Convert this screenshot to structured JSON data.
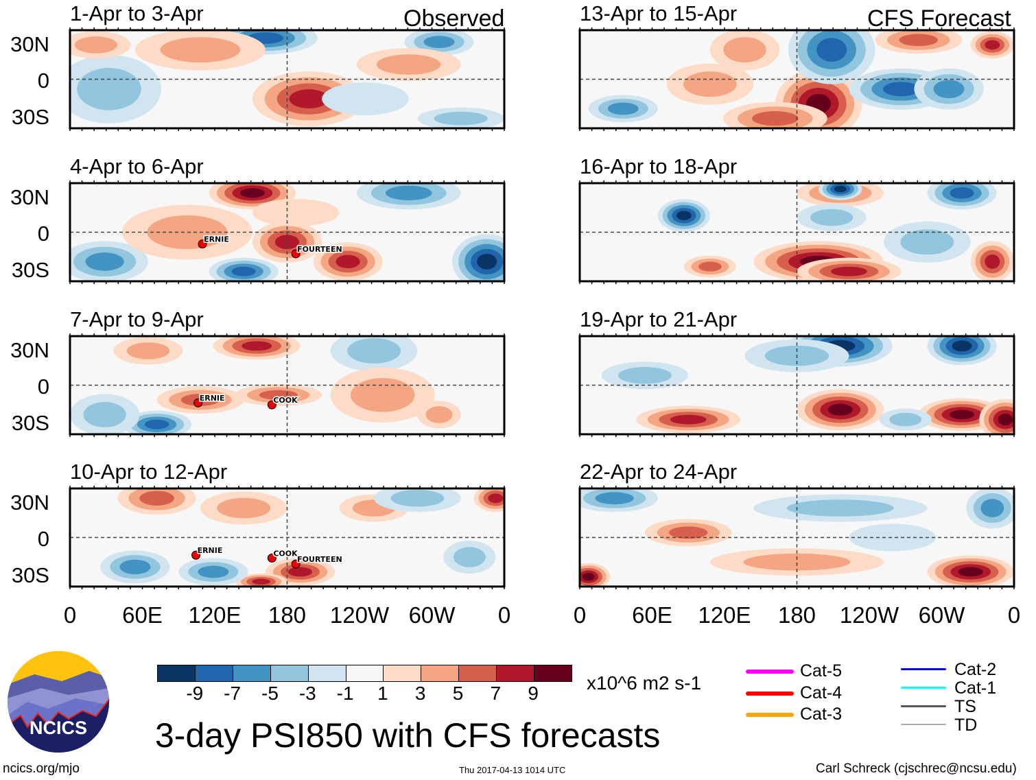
{
  "header": {
    "observed_label": "Observed",
    "forecast_label": "CFS Forecast"
  },
  "panels": [
    {
      "title": "1-Apr to 3-Apr",
      "group": "observed",
      "storms": []
    },
    {
      "title": "4-Apr to 6-Apr",
      "group": "observed",
      "storms": [
        {
          "name": "ERNIE",
          "id": "E"
        },
        {
          "name": "FOURTEEN",
          "id": "14"
        }
      ]
    },
    {
      "title": "7-Apr to 9-Apr",
      "group": "observed",
      "storms": [
        {
          "name": "ERNIE",
          "id": "E"
        },
        {
          "name": "COOK",
          "id": "C"
        }
      ]
    },
    {
      "title": "10-Apr to 12-Apr",
      "group": "observed",
      "storms": [
        {
          "name": "ERNIE",
          "id": "E"
        },
        {
          "name": "COOK",
          "id": "C"
        },
        {
          "name": "FOURTEEN",
          "id": "14"
        }
      ]
    },
    {
      "title": "13-Apr to 15-Apr",
      "group": "forecast",
      "storms": []
    },
    {
      "title": "16-Apr to 18-Apr",
      "group": "forecast",
      "storms": []
    },
    {
      "title": "19-Apr to 21-Apr",
      "group": "forecast",
      "storms": []
    },
    {
      "title": "22-Apr to 24-Apr",
      "group": "forecast",
      "storms": []
    }
  ],
  "axes": {
    "lat_labels": [
      "30N",
      "0",
      "30S"
    ],
    "lon_labels": [
      "0",
      "60E",
      "120E",
      "180",
      "120W",
      "60W",
      "0"
    ]
  },
  "colorbar": {
    "colors": [
      "#0a3463",
      "#2166ac",
      "#4393c3",
      "#92c5de",
      "#d1e5f0",
      "#f7f7f7",
      "#fddbc7",
      "#f4a582",
      "#d6604d",
      "#b2182b",
      "#67001f"
    ],
    "ticks": [
      "-9",
      "-7",
      "-5",
      "-3",
      "-1",
      "1",
      "3",
      "5",
      "7",
      "9"
    ],
    "units": "x10^6 m2 s-1"
  },
  "title": "3-day PSI850 with CFS forecasts",
  "legend": [
    {
      "label": "Cat-5",
      "color": "#ff00ff"
    },
    {
      "label": "Cat-4",
      "color": "#ff0000"
    },
    {
      "label": "Cat-3",
      "color": "#ffa500"
    },
    {
      "label": "Cat-2",
      "color": "#0000ff"
    },
    {
      "label": "Cat-1",
      "color": "#00ffff"
    },
    {
      "label": "TS",
      "color": "#555555"
    },
    {
      "label": "TD",
      "color": "#aaaaaa"
    }
  ],
  "logo": {
    "text": "NCICS"
  },
  "footer": {
    "left": "ncics.org/mjo",
    "center": "Thu 2017-04-13 1014 UTC",
    "right": "Carl Schreck (cjschrec@ncsu.edu)"
  }
}
